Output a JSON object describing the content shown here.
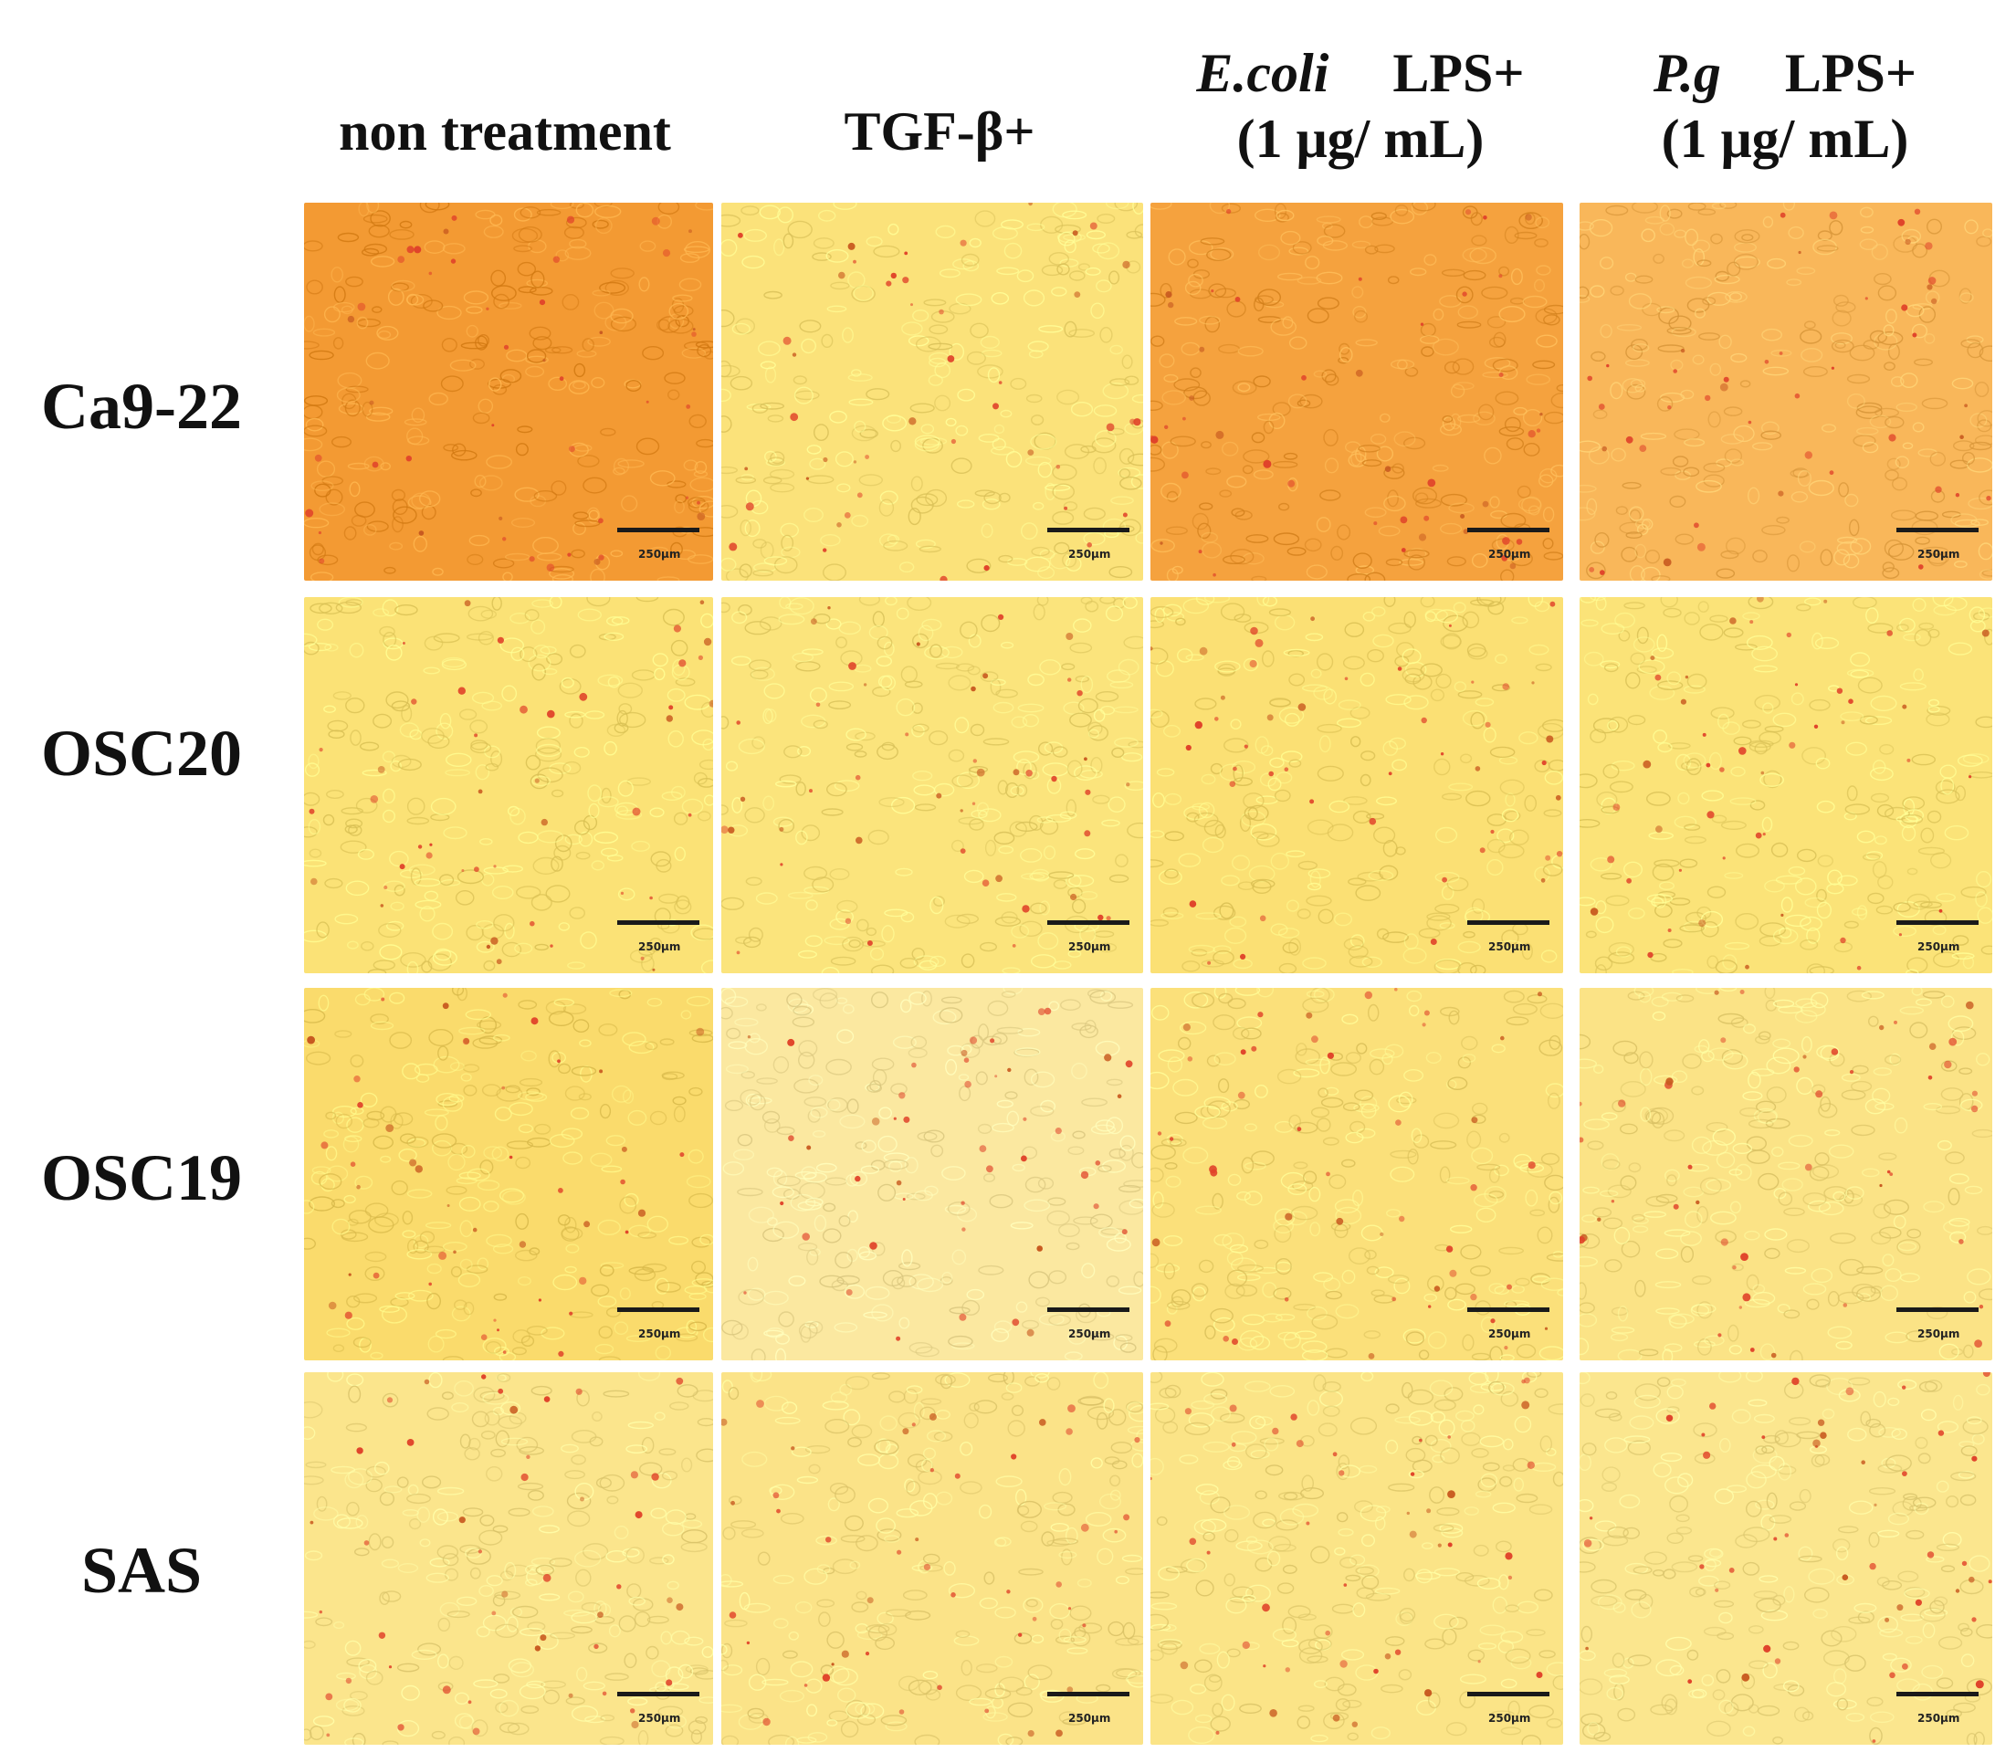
{
  "columns": [
    {
      "id": "non",
      "line1": "non treatment",
      "line2": ""
    },
    {
      "id": "tgf",
      "line1": "TGF-β+",
      "line2": ""
    },
    {
      "id": "ecoli",
      "line1_italic": "E.coli",
      "line1_rest": "LPS+",
      "line2": "(1 μg/ mL)"
    },
    {
      "id": "pg",
      "line1_italic": "P.g",
      "line1_rest": "LPS+",
      "line2": "(1 μg/ mL)"
    }
  ],
  "rows": [
    {
      "label": "Ca9-22"
    },
    {
      "label": "OSC20"
    },
    {
      "label": "OSC19"
    },
    {
      "label": "SAS"
    }
  ],
  "scale_bar_label": "250μm",
  "panel_colors": [
    [
      "#f39a33",
      "#fbe27a",
      "#f5a23e",
      "#f9b75a"
    ],
    [
      "#fbe276",
      "#fbe47c",
      "#fbe074",
      "#fbe378"
    ],
    [
      "#fadb6c",
      "#fbe8a0",
      "#fbe07a",
      "#fbe386"
    ],
    [
      "#fbe58c",
      "#fbe388",
      "#fbe487",
      "#fbe68e"
    ]
  ]
}
